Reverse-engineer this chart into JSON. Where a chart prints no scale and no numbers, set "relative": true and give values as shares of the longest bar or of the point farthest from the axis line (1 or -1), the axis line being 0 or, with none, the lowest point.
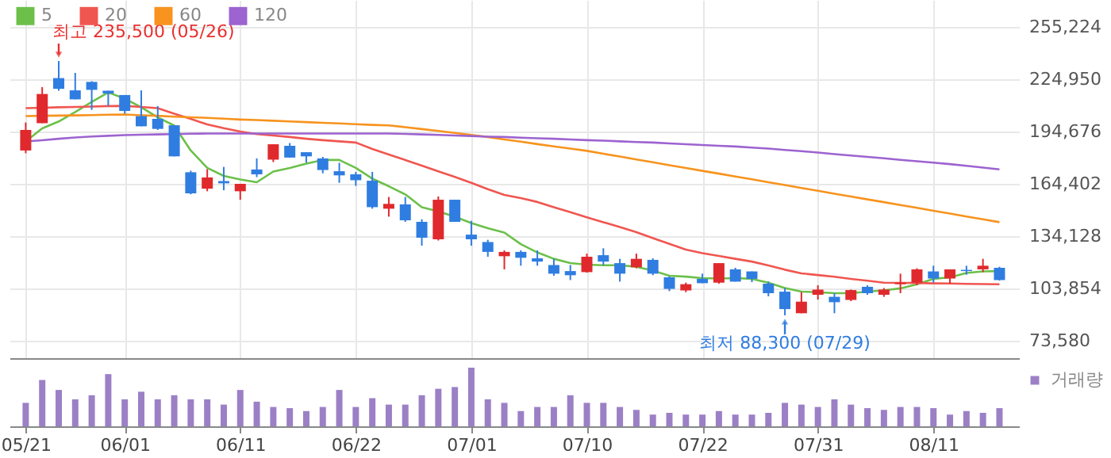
{
  "chart_data": [
    {
      "type": "candlestick",
      "categories": [
        null,
        null,
        null,
        null,
        null,
        null,
        null,
        null,
        null,
        null,
        null,
        null,
        null,
        null,
        null,
        null,
        null,
        null,
        null,
        null,
        null,
        null,
        null,
        null,
        null,
        null,
        null,
        null,
        null,
        null,
        null,
        null,
        null,
        null,
        null,
        null,
        null,
        null,
        null,
        null,
        null,
        null,
        null,
        null,
        null,
        null,
        null,
        null,
        null,
        null,
        null,
        null,
        null,
        null,
        null,
        null,
        null,
        null,
        null,
        null
      ],
      "ohlc": [
        [
          183700,
          199900,
          182100,
          195600
        ],
        [
          199500,
          220400,
          199500,
          216400
        ],
        [
          225600,
          235500,
          218300,
          219400
        ],
        [
          218500,
          228600,
          213300,
          213300
        ],
        [
          223400,
          223800,
          207200,
          218800
        ],
        [
          218300,
          218300,
          209600,
          216700
        ],
        [
          215800,
          215800,
          205000,
          206600
        ],
        [
          203600,
          218500,
          197700,
          197700
        ],
        [
          202000,
          209400,
          195600,
          196200
        ],
        [
          198300,
          198300,
          180300,
          180300
        ],
        [
          171100,
          172000,
          158300,
          158900
        ],
        [
          161600,
          172900,
          160100,
          168100
        ],
        [
          166000,
          174200,
          160700,
          164700
        ],
        [
          160100,
          164400,
          155200,
          164400
        ],
        [
          172700,
          179100,
          168300,
          169900
        ],
        [
          178400,
          187300,
          177000,
          187300
        ],
        [
          186400,
          188000,
          179600,
          179600
        ],
        [
          182700,
          182700,
          176600,
          180300
        ],
        [
          179100,
          180000,
          170500,
          172400
        ],
        [
          171700,
          176600,
          165000,
          169300
        ],
        [
          169900,
          171300,
          163200,
          166500
        ],
        [
          166200,
          171300,
          150000,
          150900
        ],
        [
          150000,
          156800,
          145400,
          152800
        ],
        [
          152500,
          156800,
          142400,
          143300
        ],
        [
          142400,
          143900,
          128600,
          133200
        ],
        [
          132300,
          157100,
          131600,
          155200
        ],
        [
          155200,
          155200,
          142400,
          142400
        ],
        [
          135000,
          143000,
          128600,
          132300
        ],
        [
          130700,
          132000,
          122200,
          125000
        ],
        [
          122500,
          125900,
          114900,
          125000
        ],
        [
          125000,
          125900,
          117000,
          121600
        ],
        [
          121300,
          125900,
          117000,
          119400
        ],
        [
          117400,
          121000,
          111200,
          112400
        ],
        [
          113900,
          117400,
          108700,
          111500
        ],
        [
          113300,
          124000,
          113000,
          122200
        ],
        [
          123100,
          127100,
          117400,
          119400
        ],
        [
          118500,
          121000,
          107800,
          112400
        ],
        [
          116100,
          124000,
          115500,
          121000
        ],
        [
          120400,
          121300,
          111500,
          112400
        ],
        [
          110300,
          110900,
          102300,
          103600
        ],
        [
          102700,
          107200,
          101700,
          106300
        ],
        [
          109400,
          112400,
          106900,
          106900
        ],
        [
          107200,
          118500,
          106600,
          118500
        ],
        [
          114900,
          115800,
          107800,
          107800
        ],
        [
          113700,
          113700,
          107500,
          109400
        ],
        [
          106600,
          107800,
          99300,
          101100
        ],
        [
          102000,
          104100,
          88300,
          91900
        ],
        [
          89500,
          101700,
          89500,
          96200
        ],
        [
          100200,
          105700,
          97400,
          103200
        ],
        [
          99000,
          101100,
          89500,
          95900
        ],
        [
          97200,
          103200,
          96500,
          102900
        ],
        [
          104800,
          105700,
          100200,
          101100
        ],
        [
          100200,
          104100,
          99000,
          103200
        ],
        [
          106300,
          112400,
          101100,
          107200
        ],
        [
          107200,
          115500,
          105700,
          114900
        ],
        [
          113700,
          117000,
          107200,
          109600
        ],
        [
          109600,
          114900,
          106600,
          114900
        ],
        [
          114600,
          117000,
          111800,
          113900
        ],
        [
          114900,
          121000,
          113300,
          117000
        ],
        [
          115800,
          116400,
          108400,
          108700
        ]
      ],
      "colors": [
        "#e0292d",
        "#e0292d",
        "#2f7de1",
        "#2f7de1",
        "#2f7de1",
        "#2f7de1",
        "#2f7de1",
        "#2f7de1",
        "#2f7de1",
        "#2f7de1",
        "#2f7de1",
        "#e0292d",
        "#2f7de1",
        "#e0292d",
        "#2f7de1",
        "#e0292d",
        "#2f7de1",
        "#2f7de1",
        "#2f7de1",
        "#2f7de1",
        "#2f7de1",
        "#2f7de1",
        "#e0292d",
        "#2f7de1",
        "#2f7de1",
        "#e0292d",
        "#2f7de1",
        "#2f7de1",
        "#2f7de1",
        "#e0292d",
        "#2f7de1",
        "#2f7de1",
        "#2f7de1",
        "#2f7de1",
        "#e0292d",
        "#2f7de1",
        "#2f7de1",
        "#e0292d",
        "#2f7de1",
        "#2f7de1",
        "#e0292d",
        "#2f7de1",
        "#e0292d",
        "#2f7de1",
        "#2f7de1",
        "#2f7de1",
        "#2f7de1",
        "#e0292d",
        "#e0292d",
        "#2f7de1",
        "#e0292d",
        "#2f7de1",
        "#e0292d",
        "#e0292d",
        "#e0292d",
        "#2f7de1",
        "#e0292d",
        "#2f7de1",
        "#e0292d",
        "#2f7de1"
      ],
      "series": [
        {
          "name": "5",
          "type": "line",
          "color": "#6cc04a",
          "values": [
            188900,
            196500,
            200500,
            206000,
            211800,
            217300,
            213700,
            208700,
            202900,
            198100,
            183700,
            173600,
            169000,
            166900,
            165300,
            171500,
            173600,
            176100,
            178200,
            178200,
            173600,
            167400,
            163000,
            158300,
            150900,
            148500,
            145400,
            141700,
            138700,
            136200,
            129500,
            124700,
            121000,
            118500,
            117600,
            117300,
            117300,
            116400,
            114200,
            111200,
            110700,
            109800,
            109600,
            109800,
            109400,
            107200,
            104100,
            102000,
            101700,
            101100,
            101100,
            102000,
            102700,
            103900,
            106300,
            109400,
            110300,
            112800,
            113700,
            113900
          ]
        },
        {
          "name": "20",
          "type": "line",
          "color": "#f05650",
          "values": [
            208200,
            208400,
            208700,
            208900,
            209100,
            209400,
            209500,
            208900,
            208200,
            205000,
            202000,
            198800,
            196600,
            194700,
            193200,
            192400,
            191500,
            190500,
            189700,
            189000,
            188300,
            184600,
            181400,
            178200,
            174900,
            171600,
            168400,
            165000,
            161300,
            158000,
            156100,
            153900,
            150900,
            148000,
            145000,
            142200,
            139400,
            136400,
            133000,
            129700,
            126300,
            124300,
            122700,
            121000,
            119400,
            117200,
            114700,
            112600,
            111600,
            110600,
            109400,
            108300,
            107200,
            107100,
            107000,
            106800,
            106700,
            106500,
            106400,
            106300
          ]
        },
        {
          "name": "60",
          "type": "line",
          "color": "#f7931e",
          "values": [
            203600,
            203800,
            203900,
            204000,
            204200,
            204400,
            204500,
            204100,
            203800,
            203300,
            202900,
            202600,
            202100,
            201600,
            201300,
            200900,
            200500,
            200100,
            199700,
            199400,
            198900,
            198500,
            198200,
            197200,
            196100,
            195000,
            193900,
            192700,
            191500,
            190100,
            188800,
            187400,
            186100,
            184800,
            183500,
            181800,
            180200,
            178500,
            176900,
            175200,
            173600,
            171900,
            170300,
            168600,
            167000,
            165300,
            163700,
            162000,
            160400,
            158700,
            157100,
            155400,
            153800,
            152100,
            150500,
            148800,
            147200,
            145500,
            143900,
            142200
          ]
        },
        {
          "name": "120",
          "type": "line",
          "color": "#9d63d0",
          "values": [
            188900,
            189600,
            190500,
            191200,
            191800,
            192200,
            192600,
            192800,
            193000,
            193200,
            193400,
            193500,
            193500,
            193500,
            193500,
            193500,
            193500,
            193500,
            193500,
            193500,
            193500,
            193500,
            193500,
            193300,
            193000,
            192700,
            192400,
            192100,
            191700,
            191500,
            191100,
            190800,
            190500,
            190100,
            189700,
            189400,
            189000,
            188600,
            188300,
            187800,
            187300,
            186900,
            186400,
            186000,
            185400,
            184800,
            184000,
            183300,
            182500,
            181600,
            180800,
            180000,
            179200,
            178300,
            177500,
            176700,
            175800,
            174800,
            173800,
            172800
          ]
        }
      ],
      "ylim": [
        63500,
        270800
      ],
      "yticks": [
        {
          "value": 73580,
          "label": "73,580"
        },
        {
          "value": 103854,
          "label": "103,854"
        },
        {
          "value": 134128,
          "label": "134,128"
        },
        {
          "value": 164402,
          "label": "164,402"
        },
        {
          "value": 194676,
          "label": "194,676"
        },
        {
          "value": 224950,
          "label": "224,950"
        },
        {
          "value": 255224,
          "label": "255,224"
        }
      ],
      "grid": true,
      "legend": "top left",
      "tick_labels": "y",
      "annotations": [
        "최고 235,500 (05/26)",
        "최저 88,300 (07/29)"
      ]
    },
    {
      "type": "bar",
      "relative": true,
      "categories": [
        "05/21",
        null,
        null,
        null,
        null,
        null,
        "06/01",
        null,
        null,
        null,
        null,
        null,
        null,
        "06/11",
        null,
        null,
        null,
        null,
        null,
        null,
        "06/22",
        null,
        null,
        null,
        null,
        null,
        null,
        "07/01",
        null,
        null,
        null,
        null,
        null,
        null,
        "07/10",
        null,
        null,
        null,
        null,
        null,
        null,
        "07/22",
        null,
        null,
        null,
        null,
        null,
        null,
        "07/31",
        null,
        null,
        null,
        null,
        null,
        null,
        "08/11",
        null,
        null,
        null,
        null
      ],
      "series": [
        {
          "name": "거래량",
          "color": "#9b80c6",
          "values": [
            0.4,
            0.79,
            0.62,
            0.46,
            0.53,
            0.89,
            0.46,
            0.59,
            0.46,
            0.53,
            0.46,
            0.46,
            0.37,
            0.62,
            0.42,
            0.33,
            0.31,
            0.26,
            0.33,
            0.62,
            0.33,
            0.48,
            0.37,
            0.37,
            0.53,
            0.64,
            0.67,
            1,
            0.46,
            0.4,
            0.26,
            0.33,
            0.33,
            0.53,
            0.4,
            0.4,
            0.33,
            0.28,
            0.2,
            0.23,
            0.2,
            0.2,
            0.26,
            0.2,
            0.2,
            0.23,
            0.4,
            0.37,
            0.33,
            0.46,
            0.37,
            0.31,
            0.28,
            0.33,
            0.33,
            0.31,
            0.2,
            0.26,
            0.23,
            0.31
          ]
        }
      ],
      "legend": "top right",
      "tick_labels": "x"
    }
  ]
}
